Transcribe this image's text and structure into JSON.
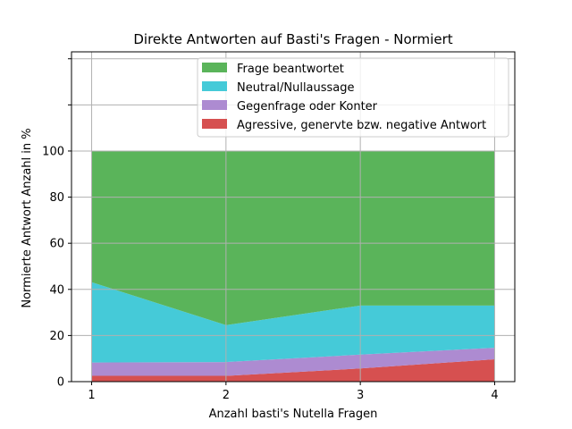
{
  "chart_data": {
    "type": "area",
    "title": "Direkte Antworten auf Basti's Fragen - Normiert",
    "xlabel": "Anzahl basti's Nutella Fragen",
    "ylabel": "Normierte Antwort Anzahl in %",
    "x": [
      1,
      2,
      3,
      4
    ],
    "xlim": [
      0.85,
      4.15
    ],
    "ylim": [
      0,
      143
    ],
    "xticks": [
      1,
      2,
      3,
      4
    ],
    "yticks": [
      0,
      20,
      40,
      60,
      80,
      100
    ],
    "extra_gridlines_y": [
      120,
      140
    ],
    "grid": true,
    "legend_position": "top-right",
    "series": [
      {
        "name": "Agressive, genervte bzw. negative Antwort",
        "color": "#d65050",
        "values": [
          2.5,
          2.5,
          5.7,
          9.7
        ]
      },
      {
        "name": "Gegenfrage oder Konter",
        "color": "#ad8bd1",
        "values": [
          5.8,
          6.0,
          6.0,
          5.0
        ]
      },
      {
        "name": "Neutral/Nullaussage",
        "color": "#45cad8",
        "values": [
          34.8,
          16.0,
          21.3,
          18.3
        ]
      },
      {
        "name": "Frage beantwortet",
        "color": "#5ab45a",
        "values": [
          56.9,
          75.5,
          67.0,
          67.0
        ]
      }
    ]
  }
}
